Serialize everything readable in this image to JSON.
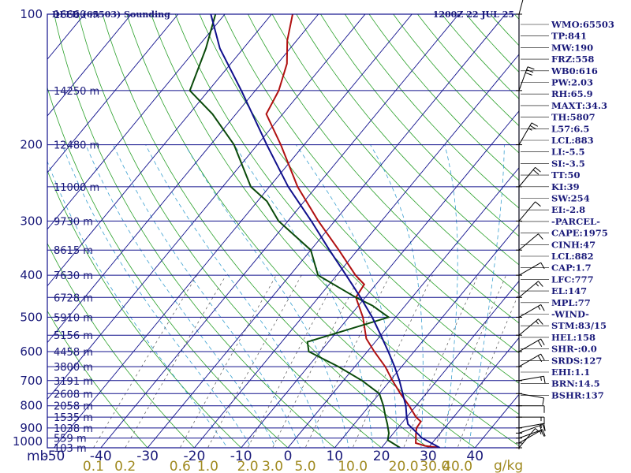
{
  "header": {
    "station": "DFFD (65503) Sounding",
    "time": "1200Z 22 JUL 25"
  },
  "chart_data": {
    "type": "line",
    "title": "DFFD (65503) Sounding",
    "subtitle": "1200Z 22 JUL 25",
    "xlabel": "mb",
    "mixing_ratio_unit": "g/kg",
    "xlim": [
      -50,
      50
    ],
    "ylim": [
      1000,
      100
    ],
    "y_scale": "log",
    "pressure_ticks": [
      100,
      200,
      300,
      400,
      500,
      600,
      700,
      800,
      900,
      1000
    ],
    "temperature_ticks": [
      -50,
      -40,
      -30,
      -20,
      -10,
      0,
      10,
      20,
      30,
      40,
      50
    ],
    "mixing_ratio_ticks": [
      "0.1",
      "0.2",
      "0.6",
      "1.0",
      "2.0",
      "3.0",
      "5.0",
      "10.0",
      "20.0",
      "30.0",
      "40.0"
    ],
    "mixing_ratio_values": [
      0.1,
      0.2,
      0.6,
      1.0,
      2.0,
      3.0,
      5.0,
      10.0,
      20.0,
      30.0,
      40.0
    ],
    "height_labels": [
      {
        "p": 100,
        "text": "16660 m"
      },
      {
        "p": 150,
        "text": "14250 m"
      },
      {
        "p": 200,
        "text": "12480 m"
      },
      {
        "p": 250,
        "text": "11000 m"
      },
      {
        "p": 300,
        "text": "9730 m"
      },
      {
        "p": 350,
        "text": "8615 m"
      },
      {
        "p": 400,
        "text": "7630 m"
      },
      {
        "p": 450,
        "text": "6728 m"
      },
      {
        "p": 500,
        "text": "5910 m"
      },
      {
        "p": 550,
        "text": "5156 m"
      },
      {
        "p": 600,
        "text": "4458 m"
      },
      {
        "p": 650,
        "text": "3800 m"
      },
      {
        "p": 700,
        "text": "3191 m"
      },
      {
        "p": 750,
        "text": "2608 m"
      },
      {
        "p": 800,
        "text": "2058 m"
      },
      {
        "p": 850,
        "text": "1535 m"
      },
      {
        "p": 900,
        "text": "1038 m"
      },
      {
        "p": 950,
        "text": "559 m"
      },
      {
        "p": 1000,
        "text": "103 m"
      }
    ],
    "series": [
      {
        "name": "Temperature",
        "color": "#b01010",
        "points": [
          {
            "p": 1000,
            "t": 32.5
          },
          {
            "p": 990,
            "t": 29.0
          },
          {
            "p": 975,
            "t": 26.5
          },
          {
            "p": 960,
            "t": 26.0
          },
          {
            "p": 925,
            "t": 24.8
          },
          {
            "p": 900,
            "t": 24.0
          },
          {
            "p": 870,
            "t": 23.8
          },
          {
            "p": 850,
            "t": 22.0
          },
          {
            "p": 800,
            "t": 18.5
          },
          {
            "p": 750,
            "t": 14.5
          },
          {
            "p": 700,
            "t": 10.5
          },
          {
            "p": 650,
            "t": 6.5
          },
          {
            "p": 600,
            "t": 1.5
          },
          {
            "p": 560,
            "t": -2.5
          },
          {
            "p": 500,
            "t": -7.0
          },
          {
            "p": 450,
            "t": -12.0
          },
          {
            "p": 420,
            "t": -12.5
          },
          {
            "p": 400,
            "t": -16.0
          },
          {
            "p": 350,
            "t": -24.0
          },
          {
            "p": 300,
            "t": -33.5
          },
          {
            "p": 250,
            "t": -44.0
          },
          {
            "p": 200,
            "t": -55.0
          },
          {
            "p": 170,
            "t": -63.5
          },
          {
            "p": 150,
            "t": -65.0
          },
          {
            "p": 130,
            "t": -68.0
          },
          {
            "p": 115,
            "t": -72.0
          },
          {
            "p": 100,
            "t": -75.5
          }
        ]
      },
      {
        "name": "Dewpoint",
        "color": "#0a4a0a",
        "points": [
          {
            "p": 1000,
            "t": 24.0
          },
          {
            "p": 960,
            "t": 20.0
          },
          {
            "p": 925,
            "t": 19.0
          },
          {
            "p": 880,
            "t": 17.0
          },
          {
            "p": 850,
            "t": 15.5
          },
          {
            "p": 800,
            "t": 13.0
          },
          {
            "p": 750,
            "t": 10.0
          },
          {
            "p": 700,
            "t": 4.0
          },
          {
            "p": 650,
            "t": -3.5
          },
          {
            "p": 600,
            "t": -12.5
          },
          {
            "p": 570,
            "t": -14.5
          },
          {
            "p": 500,
            "t": -1.5
          },
          {
            "p": 470,
            "t": -7.0
          },
          {
            "p": 450,
            "t": -12.0
          },
          {
            "p": 400,
            "t": -24.0
          },
          {
            "p": 350,
            "t": -30.0
          },
          {
            "p": 300,
            "t": -42.0
          },
          {
            "p": 270,
            "t": -48.0
          },
          {
            "p": 250,
            "t": -54.0
          },
          {
            "p": 200,
            "t": -65.0
          },
          {
            "p": 170,
            "t": -75.0
          },
          {
            "p": 150,
            "t": -84.0
          },
          {
            "p": 120,
            "t": -88.0
          },
          {
            "p": 100,
            "t": -92.0
          }
        ]
      },
      {
        "name": "Parcel",
        "color": "#10108c",
        "points": [
          {
            "p": 1000,
            "t": 32.5
          },
          {
            "p": 950,
            "t": 27.0
          },
          {
            "p": 900,
            "t": 23.0
          },
          {
            "p": 882,
            "t": 21.5
          },
          {
            "p": 850,
            "t": 20.0
          },
          {
            "p": 800,
            "t": 17.8
          },
          {
            "p": 750,
            "t": 15.0
          },
          {
            "p": 700,
            "t": 12.0
          },
          {
            "p": 650,
            "t": 8.5
          },
          {
            "p": 600,
            "t": 4.5
          },
          {
            "p": 550,
            "t": 0.0
          },
          {
            "p": 500,
            "t": -5.0
          },
          {
            "p": 450,
            "t": -11.0
          },
          {
            "p": 400,
            "t": -18.0
          },
          {
            "p": 350,
            "t": -26.0
          },
          {
            "p": 300,
            "t": -35.0
          },
          {
            "p": 250,
            "t": -46.0
          },
          {
            "p": 200,
            "t": -58.0
          },
          {
            "p": 150,
            "t": -73.0
          },
          {
            "p": 120,
            "t": -85.0
          },
          {
            "p": 100,
            "t": -93.0
          }
        ]
      }
    ],
    "wind_barbs": [
      {
        "p": 1000,
        "dir": 40,
        "spd": 5
      },
      {
        "p": 975,
        "dir": 60,
        "spd": 10
      },
      {
        "p": 950,
        "dir": 70,
        "spd": 15
      },
      {
        "p": 925,
        "dir": 70,
        "spd": 20
      },
      {
        "p": 900,
        "dir": 80,
        "spd": 15
      },
      {
        "p": 850,
        "dir": 90,
        "spd": 15
      },
      {
        "p": 800,
        "dir": 90,
        "spd": 10
      },
      {
        "p": 750,
        "dir": 100,
        "spd": 10
      },
      {
        "p": 700,
        "dir": 80,
        "spd": 15
      },
      {
        "p": 650,
        "dir": 60,
        "spd": 20
      },
      {
        "p": 600,
        "dir": 60,
        "spd": 20
      },
      {
        "p": 550,
        "dir": 50,
        "spd": 15
      },
      {
        "p": 500,
        "dir": 60,
        "spd": 15
      },
      {
        "p": 450,
        "dir": 50,
        "spd": 15
      },
      {
        "p": 400,
        "dir": 60,
        "spd": 10
      },
      {
        "p": 350,
        "dir": 50,
        "spd": 10
      },
      {
        "p": 300,
        "dir": 40,
        "spd": 10
      },
      {
        "p": 250,
        "dir": 40,
        "spd": 20
      },
      {
        "p": 200,
        "dir": 30,
        "spd": 25
      },
      {
        "p": 150,
        "dir": 20,
        "spd": 30
      },
      {
        "p": 100,
        "dir": 15,
        "spd": 20
      }
    ]
  },
  "indices": [
    "WMO:65503",
    "TP:841",
    "MW:190",
    "FRZ:558",
    "WB0:616",
    "PW:2.03",
    "RH:65.9",
    "MAXT:34.3",
    "TH:5807",
    "L57:6.5",
    "LCL:883",
    "LI:-5.5",
    "SI:-3.5",
    "TT:50",
    "KI:39",
    "SW:254",
    "EI:-2.8",
    "-PARCEL-",
    "CAPE:1975",
    "CINH:47",
    "LCL:882",
    "CAP:1.7",
    "LFC:777",
    "EL:147",
    "MPL:77",
    "-WIND-",
    "STM:83/15",
    "HEL:158",
    "SHR-:0.0",
    "SRDS:127",
    "EHI:1.1",
    "BRN:14.5",
    "BSHR:137"
  ],
  "colors": {
    "isobar": "#10108c",
    "isotherm": "#10108c",
    "dry_adiabat": "#2aa02a",
    "moist_adiabat": "#3aa0d0",
    "mixing_ratio": "#555555",
    "temperature": "#b01010",
    "dewpoint": "#0a4a0a",
    "parcel": "#10108c"
  }
}
